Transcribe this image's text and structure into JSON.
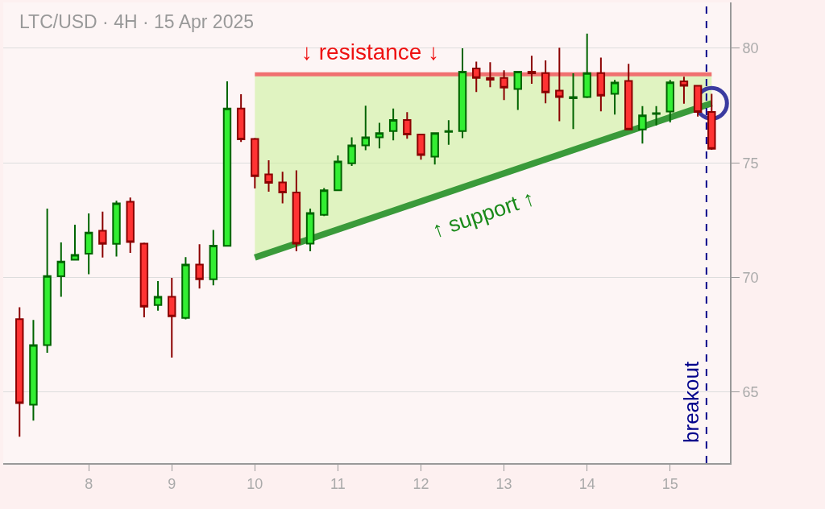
{
  "chart_data": {
    "type": "candlestick",
    "title": "LTC/USD · 4H · 15 Apr 2025",
    "x": [
      "2025-04-07T04:00",
      "2025-04-07T08:00",
      "2025-04-07T12:00",
      "2025-04-07T16:00",
      "2025-04-07T20:00",
      "2025-04-08T00:00",
      "2025-04-08T04:00",
      "2025-04-08T08:00",
      "2025-04-08T12:00",
      "2025-04-08T16:00",
      "2025-04-08T20:00",
      "2025-04-09T00:00",
      "2025-04-09T04:00",
      "2025-04-09T08:00",
      "2025-04-09T12:00",
      "2025-04-09T16:00",
      "2025-04-09T20:00",
      "2025-04-10T00:00",
      "2025-04-10T04:00",
      "2025-04-10T08:00",
      "2025-04-10T12:00",
      "2025-04-10T16:00",
      "2025-04-10T20:00",
      "2025-04-11T00:00",
      "2025-04-11T04:00",
      "2025-04-11T08:00",
      "2025-04-11T12:00",
      "2025-04-11T16:00",
      "2025-04-11T20:00",
      "2025-04-12T00:00",
      "2025-04-12T04:00",
      "2025-04-12T08:00",
      "2025-04-12T12:00",
      "2025-04-12T16:00",
      "2025-04-12T20:00",
      "2025-04-13T00:00",
      "2025-04-13T04:00",
      "2025-04-13T08:00",
      "2025-04-13T12:00",
      "2025-04-13T16:00",
      "2025-04-13T20:00",
      "2025-04-14T00:00",
      "2025-04-14T04:00",
      "2025-04-14T08:00",
      "2025-04-14T12:00",
      "2025-04-14T16:00",
      "2025-04-14T20:00",
      "2025-04-15T00:00",
      "2025-04-15T04:00",
      "2025-04-15T08:00",
      "2025-04-15T12:00"
    ],
    "ohlc": [
      [
        68.18,
        68.7,
        63.05,
        64.52
      ],
      [
        64.45,
        68.15,
        63.75,
        67.05
      ],
      [
        67.05,
        73.0,
        66.71,
        70.06
      ],
      [
        70.05,
        71.53,
        69.16,
        70.69
      ],
      [
        70.77,
        72.3,
        70.77,
        70.98
      ],
      [
        71.04,
        72.79,
        70.14,
        71.96
      ],
      [
        72.04,
        72.87,
        70.87,
        71.47
      ],
      [
        71.47,
        73.35,
        70.91,
        73.23
      ],
      [
        73.3,
        73.49,
        71.07,
        71.55
      ],
      [
        71.48,
        71.52,
        68.26,
        68.73
      ],
      [
        68.8,
        69.84,
        68.55,
        69.16
      ],
      [
        69.16,
        69.98,
        66.5,
        68.3
      ],
      [
        68.23,
        70.89,
        68.17,
        70.56
      ],
      [
        70.56,
        71.45,
        69.52,
        69.92
      ],
      [
        69.92,
        72.07,
        69.66,
        71.39
      ],
      [
        71.38,
        78.56,
        71.35,
        77.37
      ],
      [
        77.37,
        77.99,
        75.91,
        76.03
      ],
      [
        76.04,
        76.09,
        73.88,
        74.42
      ],
      [
        74.5,
        75.11,
        73.74,
        74.13
      ],
      [
        74.15,
        74.61,
        73.23,
        73.71
      ],
      [
        73.71,
        74.67,
        71.14,
        71.48
      ],
      [
        71.48,
        73.0,
        71.14,
        72.81
      ],
      [
        72.73,
        73.9,
        72.68,
        73.8
      ],
      [
        73.8,
        75.32,
        73.8,
        75.06
      ],
      [
        74.98,
        76.11,
        74.87,
        75.76
      ],
      [
        75.76,
        77.49,
        75.55,
        76.11
      ],
      [
        76.11,
        76.75,
        75.63,
        76.3
      ],
      [
        76.39,
        77.37,
        75.98,
        76.87
      ],
      [
        76.87,
        77.21,
        76.05,
        76.24
      ],
      [
        76.24,
        76.24,
        75.14,
        75.34
      ],
      [
        75.27,
        76.3,
        74.93,
        76.3
      ],
      [
        76.35,
        76.86,
        75.79,
        76.39
      ],
      [
        76.39,
        80.0,
        76.08,
        78.98
      ],
      [
        79.12,
        79.42,
        78.09,
        78.71
      ],
      [
        78.71,
        79.39,
        78.3,
        78.63
      ],
      [
        78.71,
        79.04,
        77.74,
        78.28
      ],
      [
        78.22,
        78.98,
        77.31,
        78.98
      ],
      [
        78.98,
        79.67,
        78.45,
        78.91
      ],
      [
        78.92,
        79.47,
        77.6,
        78.07
      ],
      [
        78.15,
        80.02,
        76.82,
        77.87
      ],
      [
        77.82,
        78.91,
        76.47,
        77.87
      ],
      [
        77.87,
        80.64,
        77.83,
        78.92
      ],
      [
        78.92,
        79.59,
        77.25,
        77.93
      ],
      [
        78.01,
        78.62,
        77.11,
        78.5
      ],
      [
        78.57,
        79.32,
        76.43,
        76.46
      ],
      [
        76.46,
        77.48,
        75.84,
        77.07
      ],
      [
        77.13,
        77.48,
        76.63,
        77.17
      ],
      [
        77.24,
        78.62,
        76.76,
        78.51
      ],
      [
        78.56,
        78.76,
        77.58,
        78.36
      ],
      [
        78.36,
        78.36,
        77.02,
        77.22
      ],
      [
        77.22,
        78.01,
        75.57,
        75.61
      ]
    ],
    "series": [
      {
        "type": "line",
        "name": "↓ resistance ↓",
        "color": "#f07070",
        "x": [
          "2025-04-10T00:00",
          "2025-04-15T12:00"
        ],
        "values": [
          78.86,
          78.86
        ]
      },
      {
        "type": "line",
        "name": "↑ support ↑",
        "color": "#3a9a3a",
        "x": [
          "2025-04-10T00:00",
          "2025-04-15T12:00"
        ],
        "values": [
          70.87,
          77.6
        ],
        "lower": [
          70.87,
          77.6
        ],
        "upper": [
          78.86,
          78.86
        ]
      },
      {
        "type": "scatter",
        "color": "#3b3ba0",
        "x": [
          "2025-04-15T12:00"
        ],
        "values": [
          77.6
        ]
      }
    ],
    "ref_lines": [
      {
        "axis": "x",
        "value": "2025-04-15T10:30",
        "label": "breakout",
        "color": "#00008b",
        "line_style": "dashed"
      }
    ],
    "xlim": [
      "2025-04-06T23:17",
      "2025-04-15T17:17"
    ],
    "xticks": [
      {
        "value": "2025-04-08",
        "label": "8"
      },
      {
        "value": "2025-04-09",
        "label": "9"
      },
      {
        "value": "2025-04-10",
        "label": "10"
      },
      {
        "value": "2025-04-11",
        "label": "11"
      },
      {
        "value": "2025-04-12",
        "label": "12"
      },
      {
        "value": "2025-04-13",
        "label": "13"
      },
      {
        "value": "2025-04-14",
        "label": "14"
      },
      {
        "value": "2025-04-15",
        "label": "15"
      }
    ],
    "ylim": [
      61.9,
      82.0
    ],
    "yticks": [
      65,
      70,
      75,
      80
    ],
    "grid": "y"
  }
}
